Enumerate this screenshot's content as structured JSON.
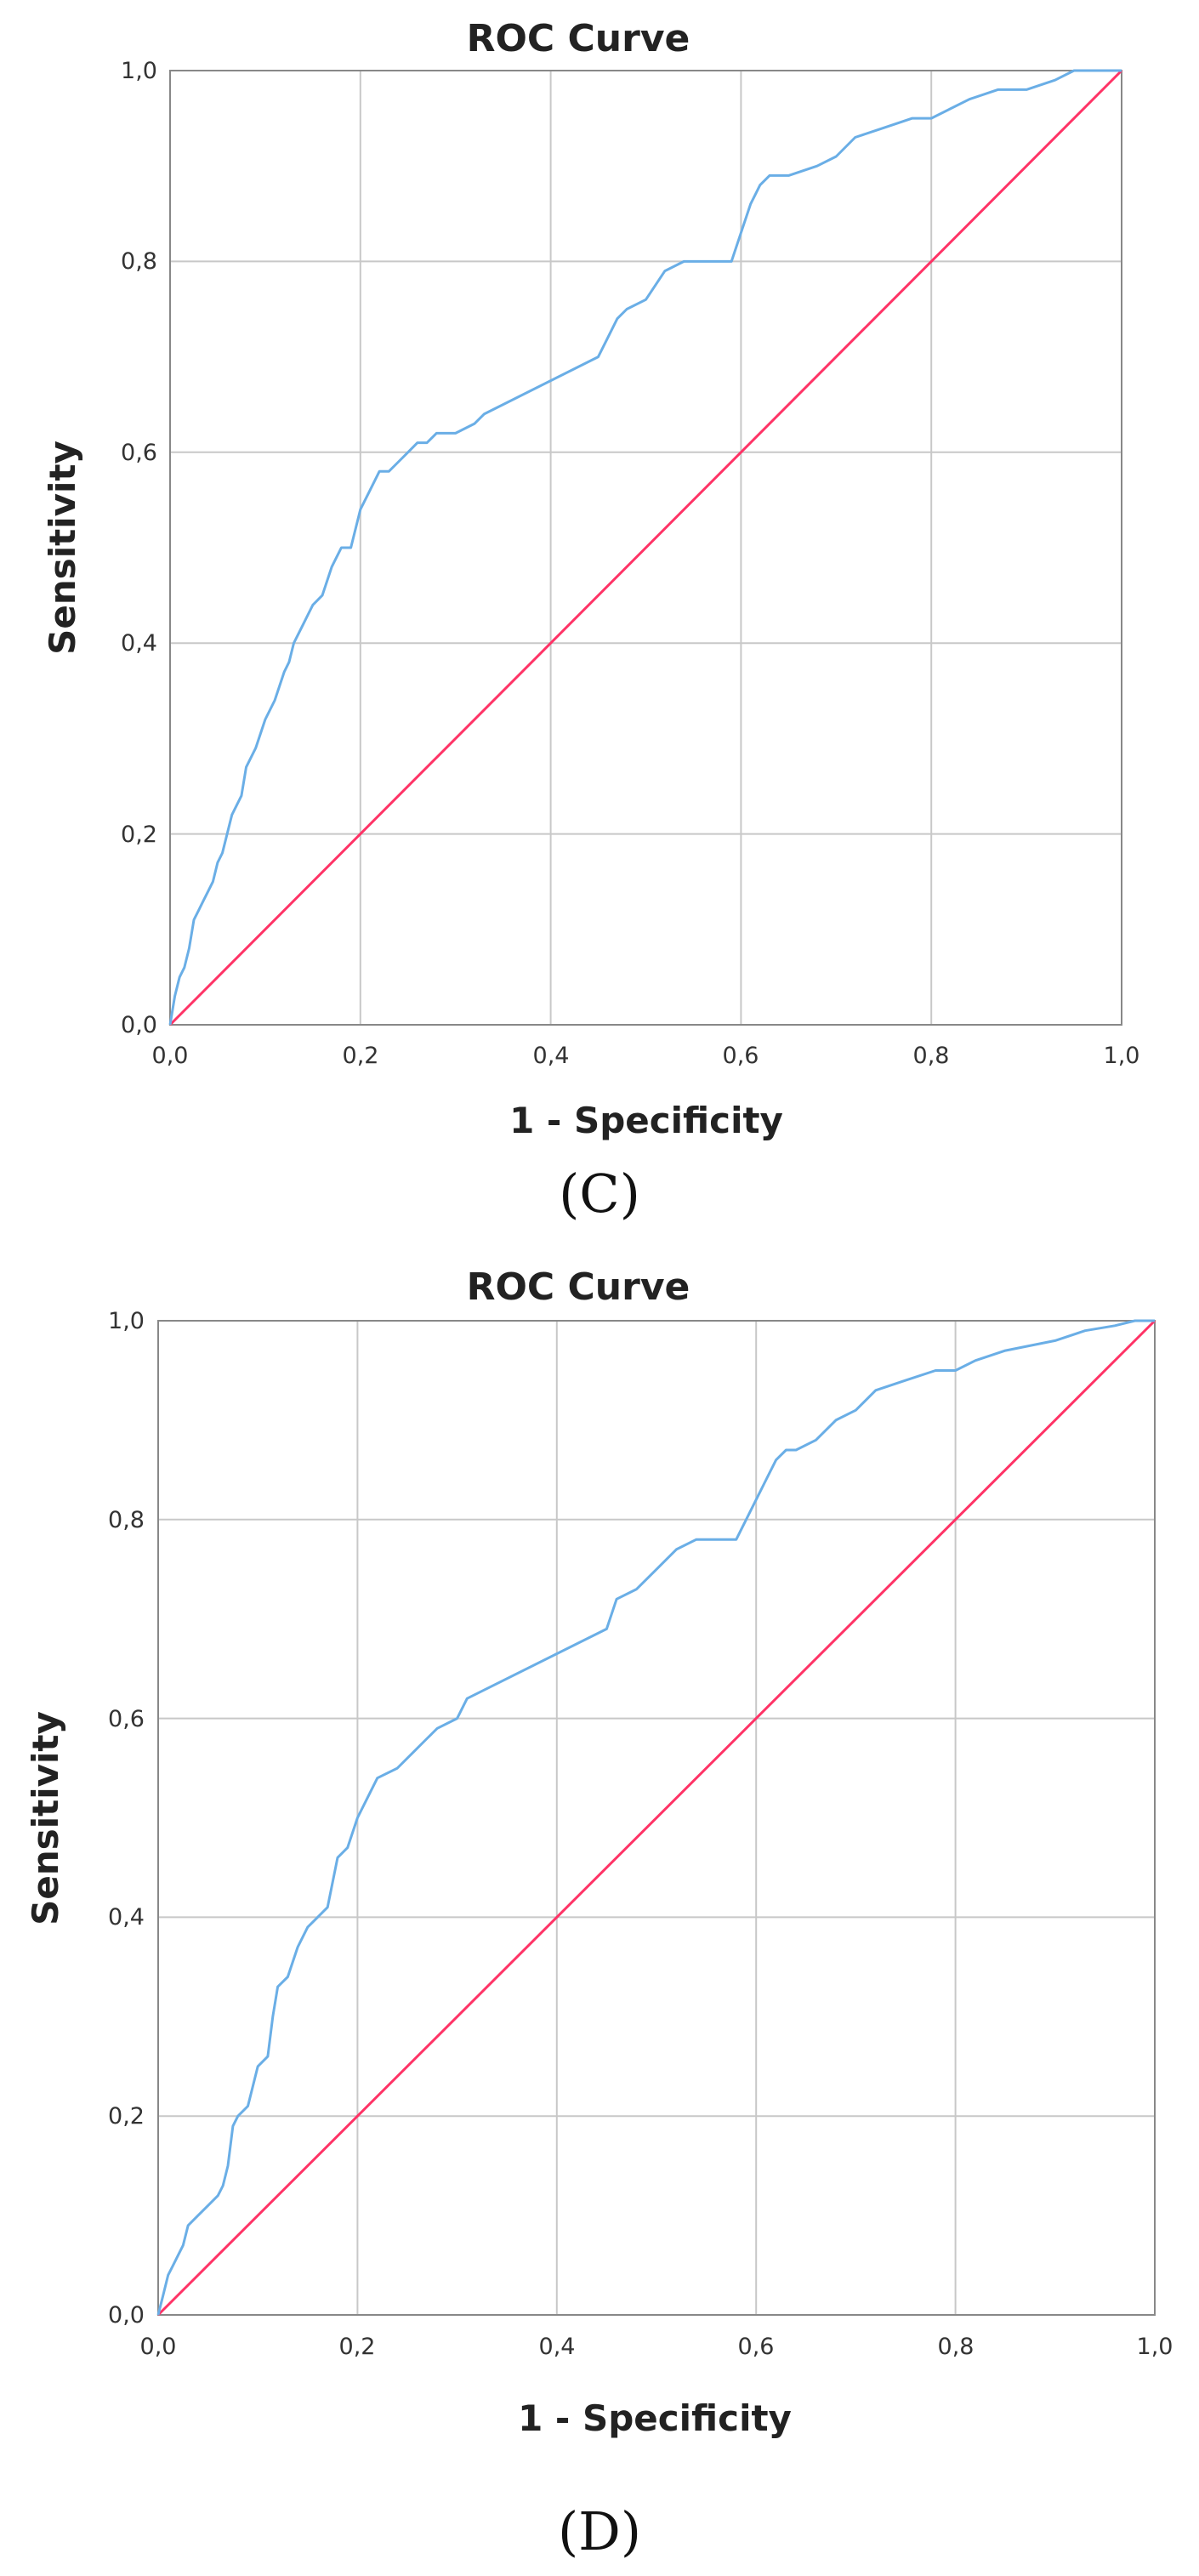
{
  "chart_data": [
    {
      "type": "line",
      "panel": "(C)",
      "title": "ROC Curve",
      "xlabel": "1 - Specificity",
      "ylabel": "Sensitivity",
      "xlim": [
        0,
        1
      ],
      "ylim": [
        0,
        1
      ],
      "grid": true,
      "x_ticks": [
        "0,0",
        "0,2",
        "0,4",
        "0,6",
        "0,8",
        "1,0"
      ],
      "y_ticks": [
        "0,0",
        "0,2",
        "0,4",
        "0,6",
        "0,8",
        "1,0"
      ],
      "colors": {
        "roc": "#6aaee6",
        "reference": "#ff3366",
        "grid": "#c8c8c8",
        "frame": "#888888"
      },
      "series": [
        {
          "name": "ROC",
          "x": [
            0,
            0.005,
            0.01,
            0.015,
            0.02,
            0.025,
            0.03,
            0.035,
            0.04,
            0.045,
            0.05,
            0.055,
            0.06,
            0.065,
            0.07,
            0.075,
            0.08,
            0.09,
            0.1,
            0.11,
            0.12,
            0.125,
            0.13,
            0.14,
            0.145,
            0.15,
            0.16,
            0.17,
            0.175,
            0.18,
            0.19,
            0.2,
            0.21,
            0.22,
            0.23,
            0.24,
            0.25,
            0.26,
            0.27,
            0.28,
            0.3,
            0.32,
            0.33,
            0.45,
            0.46,
            0.47,
            0.48,
            0.5,
            0.52,
            0.54,
            0.59,
            0.6,
            0.61,
            0.62,
            0.63,
            0.65,
            0.68,
            0.7,
            0.72,
            0.75,
            0.78,
            0.8,
            0.82,
            0.84,
            0.87,
            0.9,
            0.93,
            0.95,
            1.0
          ],
          "y": [
            0,
            0.03,
            0.05,
            0.06,
            0.08,
            0.11,
            0.12,
            0.13,
            0.14,
            0.15,
            0.17,
            0.18,
            0.2,
            0.22,
            0.23,
            0.24,
            0.27,
            0.29,
            0.32,
            0.34,
            0.37,
            0.38,
            0.4,
            0.42,
            0.43,
            0.44,
            0.45,
            0.48,
            0.49,
            0.5,
            0.5,
            0.54,
            0.56,
            0.58,
            0.58,
            0.59,
            0.6,
            0.61,
            0.61,
            0.62,
            0.62,
            0.63,
            0.64,
            0.7,
            0.72,
            0.74,
            0.75,
            0.76,
            0.79,
            0.8,
            0.8,
            0.83,
            0.86,
            0.88,
            0.89,
            0.89,
            0.9,
            0.91,
            0.93,
            0.94,
            0.95,
            0.95,
            0.96,
            0.97,
            0.98,
            0.98,
            0.99,
            1.0,
            1.0
          ]
        },
        {
          "name": "Reference Line",
          "x": [
            0,
            1
          ],
          "y": [
            0,
            1
          ]
        }
      ]
    },
    {
      "type": "line",
      "panel": "(D)",
      "title": "ROC Curve",
      "xlabel": "1 - Specificity",
      "ylabel": "Sensitivity",
      "xlim": [
        0,
        1
      ],
      "ylim": [
        0,
        1
      ],
      "grid": true,
      "x_ticks": [
        "0,0",
        "0,2",
        "0,4",
        "0,6",
        "0,8",
        "1,0"
      ],
      "y_ticks": [
        "0,0",
        "0,2",
        "0,4",
        "0,6",
        "0,8",
        "1,0"
      ],
      "colors": {
        "roc": "#6aaee6",
        "reference": "#ff3366",
        "grid": "#c8c8c8",
        "frame": "#888888"
      },
      "series": [
        {
          "name": "ROC",
          "x": [
            0,
            0.005,
            0.01,
            0.015,
            0.02,
            0.025,
            0.03,
            0.04,
            0.05,
            0.06,
            0.065,
            0.07,
            0.075,
            0.08,
            0.09,
            0.1,
            0.11,
            0.115,
            0.12,
            0.13,
            0.14,
            0.15,
            0.16,
            0.17,
            0.18,
            0.19,
            0.2,
            0.21,
            0.22,
            0.24,
            0.26,
            0.27,
            0.28,
            0.3,
            0.31,
            0.45,
            0.46,
            0.48,
            0.5,
            0.52,
            0.54,
            0.58,
            0.59,
            0.6,
            0.61,
            0.62,
            0.63,
            0.64,
            0.66,
            0.68,
            0.7,
            0.72,
            0.75,
            0.78,
            0.8,
            0.82,
            0.85,
            0.9,
            0.93,
            0.96,
            0.98,
            1.0
          ],
          "y": [
            0,
            0.02,
            0.04,
            0.05,
            0.06,
            0.07,
            0.09,
            0.1,
            0.11,
            0.12,
            0.13,
            0.15,
            0.19,
            0.2,
            0.21,
            0.25,
            0.26,
            0.3,
            0.33,
            0.34,
            0.37,
            0.39,
            0.4,
            0.41,
            0.46,
            0.47,
            0.5,
            0.52,
            0.54,
            0.55,
            0.57,
            0.58,
            0.59,
            0.6,
            0.62,
            0.69,
            0.72,
            0.73,
            0.75,
            0.77,
            0.78,
            0.78,
            0.8,
            0.82,
            0.84,
            0.86,
            0.87,
            0.87,
            0.88,
            0.9,
            0.91,
            0.93,
            0.94,
            0.95,
            0.95,
            0.96,
            0.97,
            0.98,
            0.99,
            0.995,
            1.0,
            1.0
          ]
        },
        {
          "name": "Reference Line",
          "x": [
            0,
            1
          ],
          "y": [
            0,
            1
          ]
        }
      ]
    }
  ]
}
